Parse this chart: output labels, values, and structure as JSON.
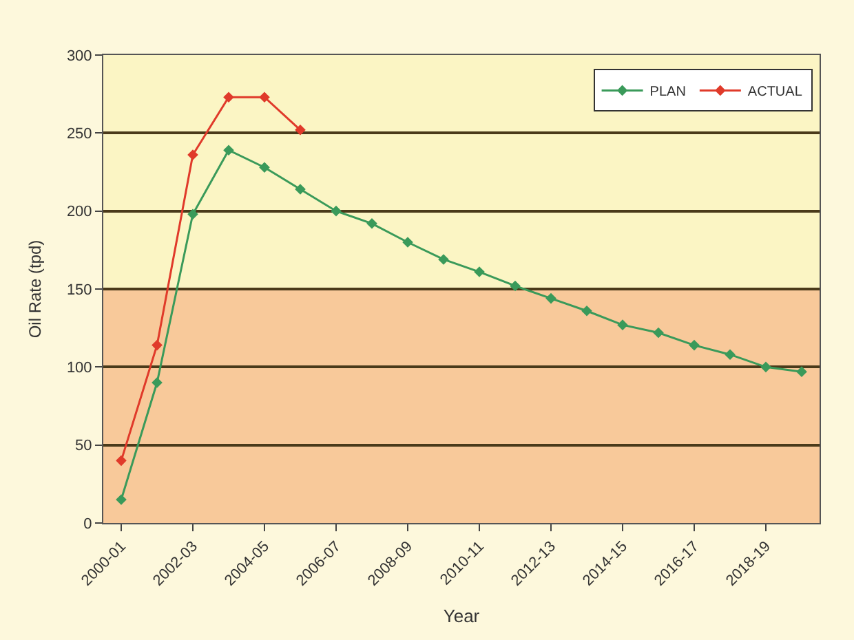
{
  "chart_data": {
    "type": "line",
    "xlabel": "Year",
    "ylabel": "Oil Rate (tpd)",
    "categories": [
      "2000-01",
      null,
      "2002-03",
      null,
      "2004-05",
      null,
      "2006-07",
      null,
      "2008-09",
      null,
      "2010-11",
      null,
      "2012-13",
      null,
      "2014-15",
      null,
      "2016-17",
      null,
      "2018-19",
      null
    ],
    "series": [
      {
        "name": "PLAN",
        "color": "#3a9a5a",
        "values": [
          15,
          90,
          198,
          239,
          228,
          214,
          200,
          192,
          180,
          169,
          161,
          152,
          144,
          136,
          127,
          122,
          114,
          108,
          100,
          97
        ]
      },
      {
        "name": "ACTUAL",
        "color": "#e03a2a",
        "values": [
          40,
          114,
          236,
          273,
          273,
          252,
          null,
          null,
          null,
          null,
          null,
          null,
          null,
          null,
          null,
          null,
          null,
          null,
          null,
          null
        ]
      }
    ],
    "ylim": [
      0,
      300
    ],
    "yticks": [
      0,
      50,
      100,
      150,
      200,
      250,
      300
    ],
    "bands": [
      {
        "axis": "y",
        "from": 0,
        "to": 150,
        "color": "#f8c99a"
      }
    ],
    "grid": "y",
    "legend": "top right",
    "marker": "diamond",
    "line_style": "solid"
  }
}
